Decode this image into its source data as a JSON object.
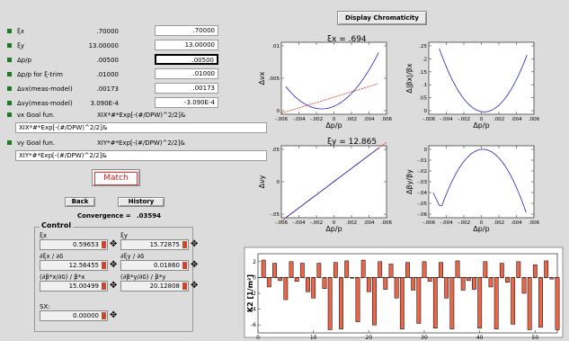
{
  "params": [
    {
      "label": "ξx",
      "display": ".70000",
      "input": ".70000"
    },
    {
      "label": "ξy",
      "display": "13.00000",
      "input": "13.00000"
    },
    {
      "label": "Δp/p",
      "display": ".00500",
      "input": ".00500"
    },
    {
      "label": "Δp/p for ξ-trim",
      "display": ".01000",
      "input": ".01000"
    },
    {
      "label": "Δνx(meas-model)",
      "display": ".00173",
      "input": ".00173"
    },
    {
      "label": "Δνy(meas-model)",
      "display": "3.090E-4",
      "input": "-3.090E-4"
    }
  ],
  "goal_x": {
    "label": "νx Goal fun.",
    "display": "XIX*#*Exp[-(#/DPW)^2/2]&",
    "input": "XIX*#*Exp[-(#/DPW)^2/2]&"
  },
  "goal_y": {
    "label": "νy Goal fun.",
    "display": "XIY*#*Exp[-(#/DPW)^2/2]&",
    "input": "XIY*#*Exp[-(#/DPW)^2/2]&"
  },
  "buttons": {
    "match": "Match",
    "back": "Back",
    "history": "History",
    "display_chromaticity": "Display Chromaticity"
  },
  "convergence": {
    "label": "Convergence =",
    "value": ".03594"
  },
  "control": {
    "title": "Control",
    "fields": [
      {
        "label": "ξx",
        "value": "0.59653"
      },
      {
        "label": "ξy",
        "value": "15.72875"
      },
      {
        "label": "∂ξx / ∂δ",
        "value": "12.56455"
      },
      {
        "label": "∂ξy / ∂δ",
        "value": "0.01860"
      },
      {
        "label": "(∂β*x/∂δ) / β*x",
        "value": "15.00499"
      },
      {
        "label": "(∂β*y/∂δ) / β*y",
        "value": "20.12808"
      },
      {
        "label": "SX:",
        "value": "0.00000"
      }
    ]
  },
  "plots": {
    "title_x": "ξx = .694",
    "title_y": "ξy = 12.865",
    "ylabel_dnux": "Δνx",
    "ylabel_dnuy": "Δνy",
    "ylabel_dbx": "Δ|βx|/βx",
    "ylabel_dby": "Δβy/βy",
    "xlabel": "Δp/p",
    "xticks": [
      "-.006",
      "-.004",
      "-.002",
      "0",
      ".002",
      ".004",
      ".006"
    ],
    "yticks_dnux": [
      ".01",
      ".005",
      "0"
    ],
    "yticks_dbx": [
      ".25",
      ".2",
      ".15",
      ".1",
      ".05",
      "0"
    ],
    "yticks_dnuy": [
      ".05",
      "0",
      "-.05"
    ],
    "yticks_dby": [
      "0",
      "-.01",
      "-.02",
      "-.03",
      "-.04",
      "-.05",
      "-.06"
    ]
  },
  "k2_chart": {
    "ylabel": "K2 [1/m²]",
    "xticks": [
      "0",
      "10",
      "20",
      "30",
      "40",
      "50"
    ],
    "yticks": [
      "2",
      "0",
      "-2",
      "-4",
      "-6"
    ]
  },
  "chart_data": {
    "type": "bar",
    "ylabel": "K2 [1/m²]",
    "xlim": [
      0,
      54
    ],
    "ylim": [
      -7,
      3
    ],
    "x": [
      1,
      2,
      3,
      4,
      5,
      6,
      7,
      8,
      9,
      10,
      11,
      12,
      13,
      14,
      15,
      16,
      17,
      18,
      19,
      20,
      21,
      22,
      23,
      24,
      25,
      26,
      27,
      28,
      29,
      30,
      31,
      32,
      33,
      34,
      35,
      36,
      37,
      38,
      39,
      40,
      41,
      42,
      43,
      44,
      45,
      46,
      47,
      48,
      49,
      50,
      51,
      52,
      53,
      54
    ],
    "values": [
      2.2,
      -1.2,
      1.8,
      -0.4,
      -2.8,
      2,
      -0.5,
      1.8,
      -1.8,
      -2.6,
      1.8,
      -1.4,
      -6.6,
      1.9,
      -6.5,
      2.1,
      0,
      -5.6,
      2.2,
      -1.8,
      -6,
      2,
      -1.5,
      1.7,
      -2.6,
      -6.5,
      1.9,
      -1.6,
      -5.8,
      2,
      -0.5,
      -6.4,
      1.9,
      -2.6,
      -6.5,
      2.1,
      -1.6,
      -0.4,
      -1.5,
      -6.4,
      2,
      -1.2,
      -6.5,
      1.8,
      -0.6,
      -5.9,
      2,
      -2,
      -6.6,
      1.6,
      -6.3,
      2.1,
      -0.2,
      -6.6
    ]
  }
}
